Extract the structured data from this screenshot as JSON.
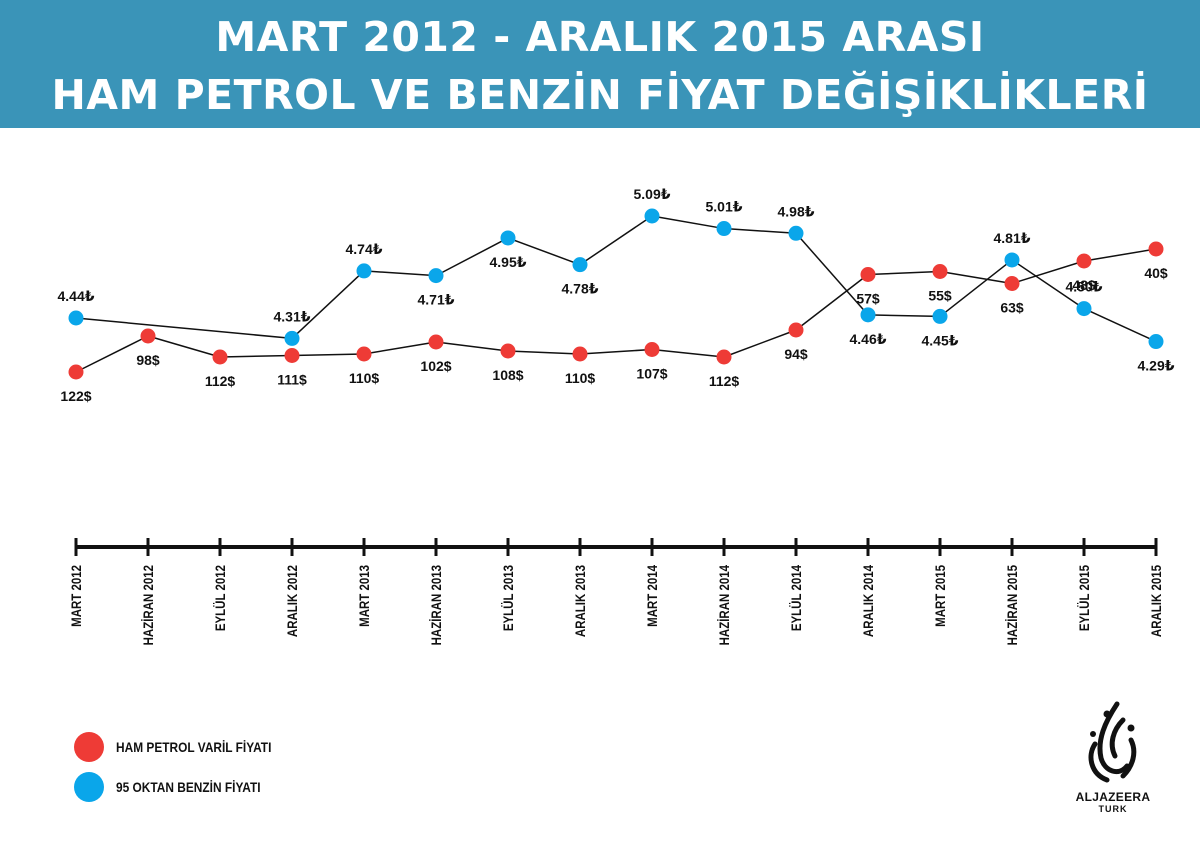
{
  "header": {
    "title_line1": "MART 2012 - ARALIK 2015 ARASI",
    "title_line2": "HAM PETROL VE BENZİN FİYAT DEĞİŞİKLİKLERİ"
  },
  "colors": {
    "banner": "#3a94b8",
    "oil": "#ee3b36",
    "gasoline": "#0aa6ea",
    "line": "#111111"
  },
  "chart_data": {
    "type": "line",
    "categories": [
      "MART 2012",
      "HAZİRAN 2012",
      "EYLÜL 2012",
      "ARALIK 2012",
      "MART 2013",
      "HAZİRAN 2013",
      "EYLÜL 2013",
      "ARALIK 2013",
      "MART 2014",
      "HAZİRAN 2014",
      "EYLÜL 2014",
      "ARALIK 2014",
      "MART 2015",
      "HAZİRAN 2015",
      "EYLÜL 2015",
      "ARALIK 2015"
    ],
    "series": [
      {
        "name": "95 OKTAN BENZİN FİYATI",
        "color": "#0aa6ea",
        "values": [
          4.44,
          null,
          null,
          4.31,
          4.74,
          4.71,
          4.95,
          4.78,
          5.09,
          5.01,
          4.98,
          4.46,
          4.45,
          4.81,
          4.5,
          4.29
        ],
        "labels": [
          "4.44₺",
          "",
          "",
          "4.31₺",
          "4.74₺",
          "4.71₺",
          "4.95₺",
          "4.78₺",
          "5.09₺",
          "5.01₺",
          "4.98₺",
          "4.46₺",
          "4.45₺",
          "4.81₺",
          "4.50₺",
          "4.29₺"
        ],
        "label_pos": [
          "above",
          "",
          "",
          "above",
          "above",
          "below",
          "below",
          "below",
          "above",
          "above",
          "above",
          "below",
          "below",
          "above",
          "above",
          "below"
        ]
      },
      {
        "name": "HAM PETROL VARİL FİYATI",
        "color": "#ee3b36",
        "values": [
          122,
          98,
          112,
          111,
          110,
          102,
          108,
          110,
          107,
          112,
          94,
          57,
          55,
          63,
          48,
          40
        ],
        "labels": [
          "122$",
          "98$",
          "112$",
          "111$",
          "110$",
          "102$",
          "108$",
          "110$",
          "107$",
          "112$",
          "94$",
          "57$",
          "55$",
          "63$",
          "48$",
          "40$"
        ],
        "label_pos": [
          "below",
          "below",
          "below",
          "below",
          "below",
          "below",
          "below",
          "below",
          "below",
          "below",
          "below",
          "below",
          "below",
          "below",
          "below",
          "below"
        ]
      }
    ],
    "legend": "bottom-left",
    "grid": false
  },
  "legend": {
    "items": [
      {
        "label": "HAM PETROL VARİL FİYATI",
        "color": "#ee3b36"
      },
      {
        "label": "95 OKTAN BENZİN FİYATI",
        "color": "#0aa6ea"
      }
    ]
  },
  "logo": {
    "name": "ALJAZEERA",
    "sub": "TURK",
    "icon": "aljazeera-calligraphy-icon"
  }
}
